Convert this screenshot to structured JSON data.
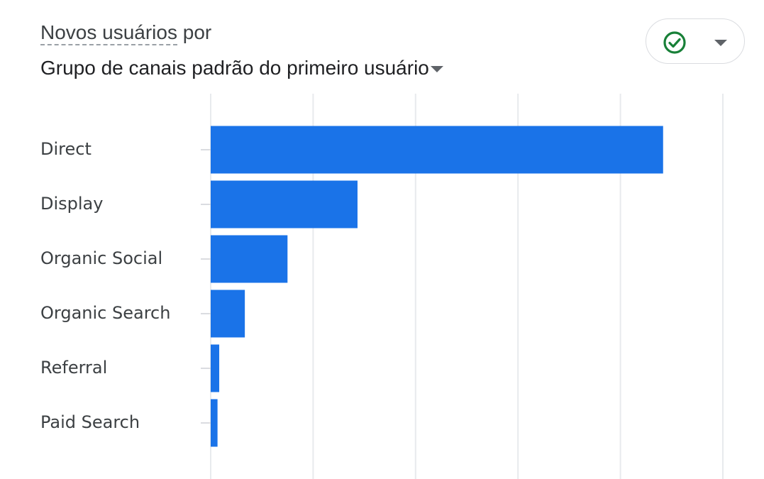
{
  "header": {
    "metric_label": "Novos usuários",
    "metric_connector": "por",
    "dimension_label": "Grupo de canais padrão do primeiro usuário"
  },
  "status_chip": {
    "icon": "check-circle-icon",
    "icon_color": "#188038"
  },
  "chart_data": {
    "type": "bar",
    "orientation": "horizontal",
    "categories": [
      "Direct",
      "Display",
      "Organic Social",
      "Organic Search",
      "Referral",
      "Paid Search"
    ],
    "series": [
      {
        "values": [
          530,
          172,
          90,
          40,
          10,
          8
        ]
      }
    ],
    "xlim": [
      0,
      600
    ],
    "grid": true,
    "bar_color": "#1a73e8"
  }
}
